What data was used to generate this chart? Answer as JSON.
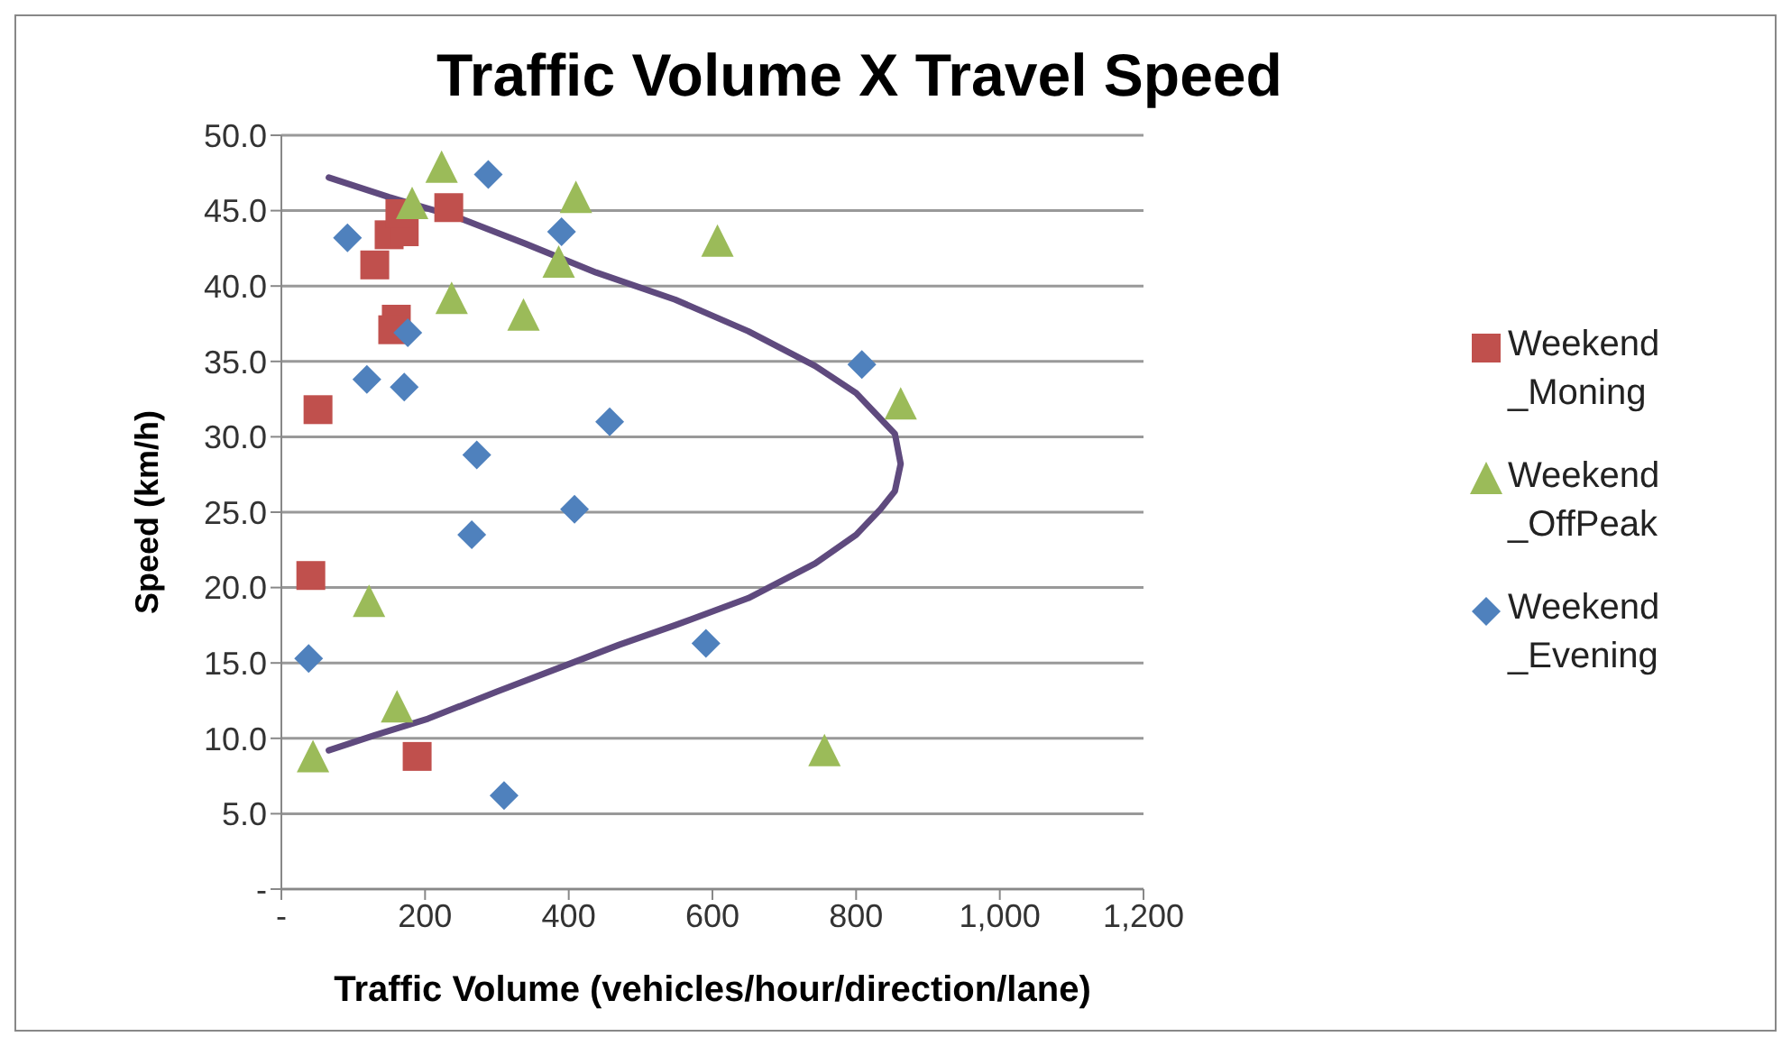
{
  "chart_data": {
    "type": "scatter",
    "title": "Traffic Volume  X Travel Speed",
    "xlabel": "Traffic Volume (vehicles/hour/direction/lane)",
    "ylabel": "Speed (km/h)",
    "xlim": [
      0,
      1200
    ],
    "xticks": [
      {
        "value": 0,
        "label": "-"
      },
      200,
      400,
      600,
      800,
      {
        "value": 1000,
        "label": "1,000"
      },
      {
        "value": 1200,
        "label": "1,200"
      }
    ],
    "ylim": [
      0,
      50
    ],
    "yticks": [
      {
        "value": 0,
        "label": "-"
      },
      {
        "value": 5,
        "label": "5.0"
      },
      {
        "value": 10,
        "label": "10.0"
      },
      {
        "value": 15,
        "label": "15.0"
      },
      {
        "value": 20,
        "label": "20.0"
      },
      {
        "value": 25,
        "label": "25.0"
      },
      {
        "value": 30,
        "label": "30.0"
      },
      {
        "value": 35,
        "label": "35.0"
      },
      {
        "value": 40,
        "label": "40.0"
      },
      {
        "value": 45,
        "label": "45.0"
      },
      {
        "value": 50,
        "label": "50.0"
      }
    ],
    "grid": "y",
    "legend": "right",
    "series": [
      {
        "name": "Weekend _Moning",
        "color": "#c0504d",
        "marker": "square",
        "x": [
          51,
          130,
          150,
          171,
          165,
          233,
          160,
          155,
          41,
          189
        ],
        "values": [
          31.8,
          41.4,
          43.4,
          43.6,
          44.8,
          45.2,
          37.8,
          37.1,
          20.8,
          8.8
        ]
      },
      {
        "name": "Weekend _OffPeak",
        "color": "#9bbb59",
        "marker": "triangle",
        "x": [
          223,
          182,
          410,
          386,
          237,
          337,
          607,
          862,
          756,
          122,
          161,
          44
        ],
        "values": [
          47.8,
          45.4,
          45.8,
          41.5,
          39.1,
          38.0,
          42.9,
          32.1,
          9.1,
          19.0,
          12.0,
          8.7
        ]
      },
      {
        "name": "Weekend _Evening",
        "color": "#4f81bd",
        "marker": "diamond",
        "x": [
          288,
          92,
          390,
          176,
          119,
          171,
          457,
          272,
          408,
          265,
          38,
          310,
          591,
          808
        ],
        "values": [
          47.4,
          43.2,
          43.6,
          36.9,
          33.8,
          33.3,
          31.0,
          28.8,
          25.2,
          23.5,
          15.3,
          6.2,
          16.3,
          34.8
        ]
      },
      {
        "type": "line",
        "color": "#5f4a7e",
        "marker": "none",
        "x": [
          66,
          150,
          243,
          340,
          438,
          548,
          650,
          743,
          800,
          834,
          854,
          862,
          854,
          834,
          800,
          743,
          650,
          548,
          470,
          399,
          300,
          204,
          130,
          66
        ],
        "values": [
          47.2,
          45.9,
          44.6,
          42.8,
          40.9,
          39.1,
          37.0,
          34.7,
          32.9,
          31.2,
          30.2,
          28.2,
          26.4,
          25.2,
          23.5,
          21.6,
          19.3,
          17.5,
          16.2,
          14.9,
          13.1,
          11.3,
          10.2,
          9.2
        ]
      }
    ]
  }
}
